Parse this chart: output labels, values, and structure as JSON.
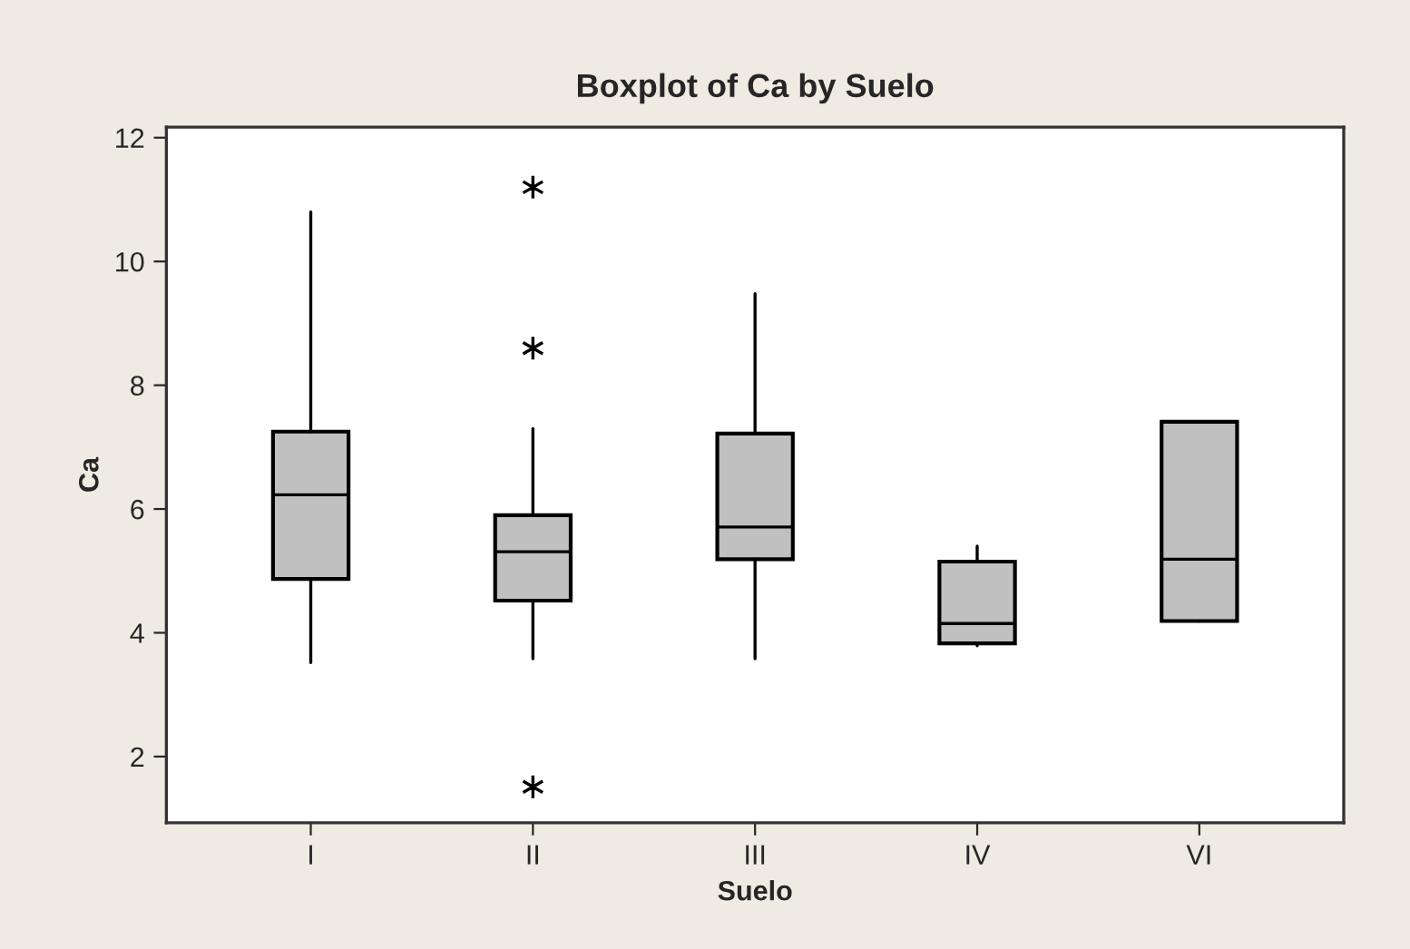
{
  "chart_data": {
    "type": "box",
    "title": "Boxplot of Ca by Suelo",
    "xlabel": "Suelo",
    "ylabel": "Ca",
    "categories": [
      "I",
      "II",
      "III",
      "IV",
      "VI"
    ],
    "boxes": [
      {
        "low": 3.52,
        "q1": 4.87,
        "median": 6.23,
        "q3": 7.25,
        "high": 10.8
      },
      {
        "low": 3.58,
        "q1": 4.52,
        "median": 5.31,
        "q3": 5.9,
        "high": 7.3,
        "outliers": [
          11.2,
          8.6,
          1.51
        ]
      },
      {
        "low": 3.58,
        "q1": 5.19,
        "median": 5.71,
        "q3": 7.22,
        "high": 9.48
      },
      {
        "low": 3.79,
        "q1": 3.83,
        "median": 4.15,
        "q3": 5.15,
        "high": 5.4
      },
      {
        "low": 4.19,
        "q1": 4.19,
        "median": 5.19,
        "q3": 7.41,
        "high": 7.41
      }
    ],
    "color": "#c0c0c0",
    "ylim": [
      0.93,
      12.17
    ],
    "yticks": [
      2,
      4,
      6,
      8,
      10,
      12
    ],
    "grid": false,
    "legend": false
  }
}
